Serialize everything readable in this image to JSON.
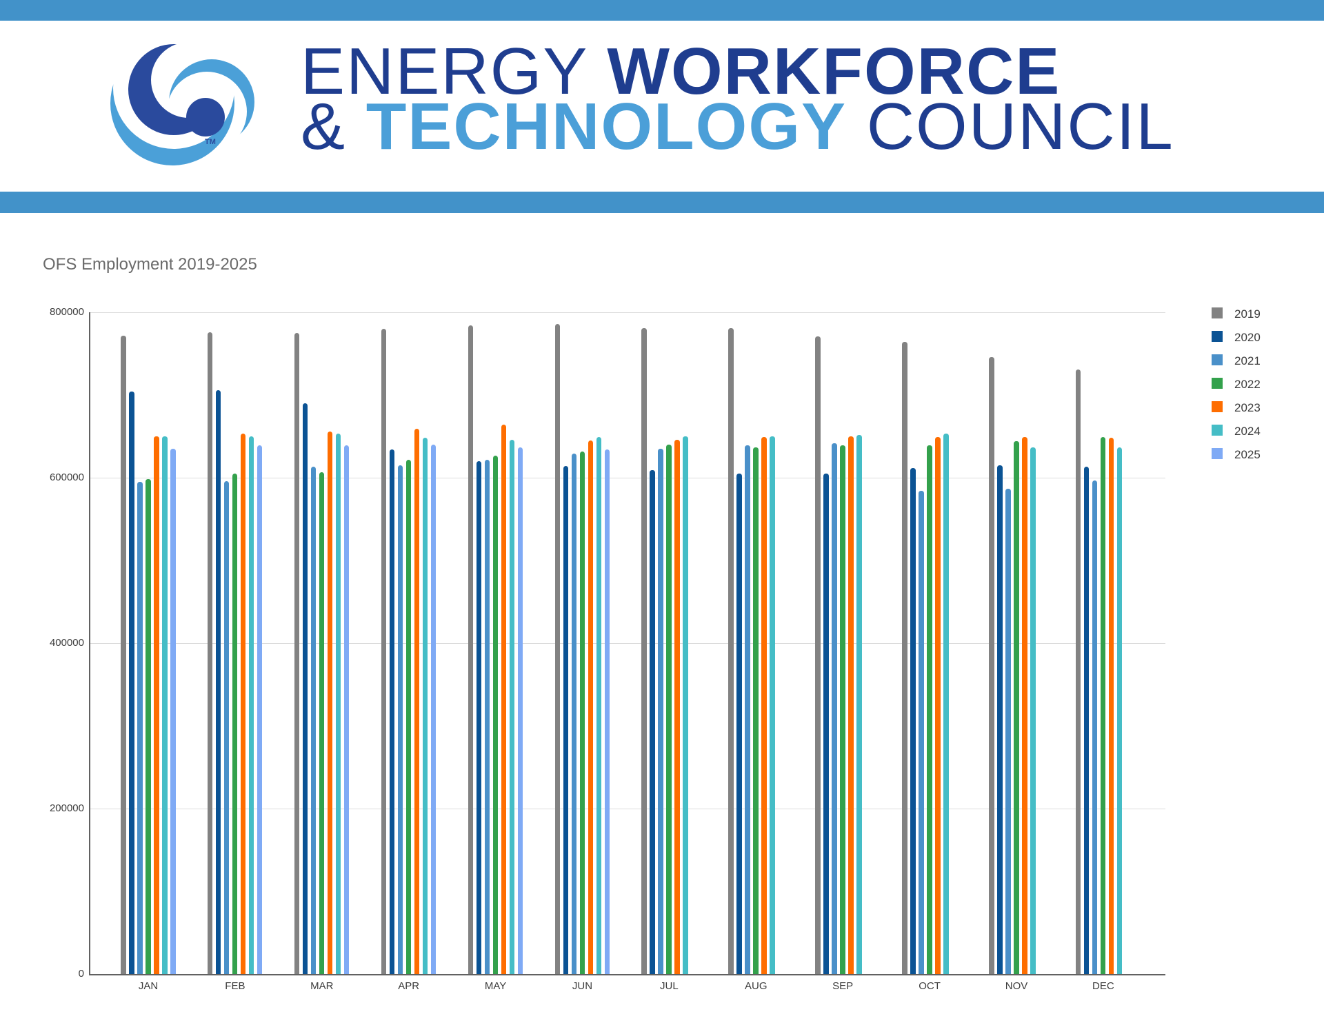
{
  "header": {
    "band_color": "#4292c9",
    "logo": {
      "dark_blue": "#2a4a9d",
      "light_blue": "#4ba0d8",
      "trademark": "TM"
    },
    "wordmark": {
      "navy": "#1f3d8f",
      "light_blue": "#4b9fd8",
      "line1_thin": "ENERGY ",
      "line1_bold": "WORKFORCE",
      "line2_amp": "& ",
      "line2_bold": "TECHNOLOGY",
      "line2_thin": " COUNCIL"
    }
  },
  "chart_data": {
    "type": "bar",
    "title": "OFS Employment 2019-2025",
    "xlabel": "",
    "ylabel": "",
    "ylim": [
      0,
      800000
    ],
    "yticks": [
      0,
      200000,
      400000,
      600000,
      800000
    ],
    "grid": true,
    "legend_position": "right",
    "categories": [
      "JAN",
      "FEB",
      "MAR",
      "APR",
      "MAY",
      "JUN",
      "JUL",
      "AUG",
      "SEP",
      "OCT",
      "NOV",
      "DEC"
    ],
    "series": [
      {
        "name": "2019",
        "color": "#828282",
        "values": [
          772000,
          776000,
          775000,
          780000,
          784000,
          786000,
          781000,
          781000,
          771000,
          764000,
          746000,
          731000
        ]
      },
      {
        "name": "2020",
        "color": "#0b5394",
        "values": [
          704000,
          706000,
          690000,
          634000,
          620000,
          614000,
          609000,
          605000,
          605000,
          612000,
          615000,
          613000
        ]
      },
      {
        "name": "2021",
        "color": "#4a90c9",
        "values": [
          595000,
          596000,
          613000,
          615000,
          622000,
          629000,
          635000,
          639000,
          642000,
          584000,
          587000,
          597000
        ]
      },
      {
        "name": "2022",
        "color": "#33a14c",
        "values": [
          598000,
          605000,
          607000,
          622000,
          627000,
          632000,
          640000,
          637000,
          639000,
          639000,
          644000,
          649000
        ]
      },
      {
        "name": "2023",
        "color": "#fe6d00",
        "values": [
          650000,
          653000,
          656000,
          659000,
          664000,
          645000,
          646000,
          649000,
          650000,
          649000,
          649000,
          648000
        ]
      },
      {
        "name": "2024",
        "color": "#45bdc6",
        "values": [
          650000,
          650000,
          653000,
          648000,
          646000,
          649000,
          650000,
          650000,
          652000,
          653000,
          637000,
          637000
        ]
      },
      {
        "name": "2025",
        "color": "#7faaf5",
        "values": [
          635000,
          639000,
          639000,
          640000,
          637000,
          634000,
          null,
          null,
          null,
          null,
          null,
          null
        ]
      }
    ]
  }
}
